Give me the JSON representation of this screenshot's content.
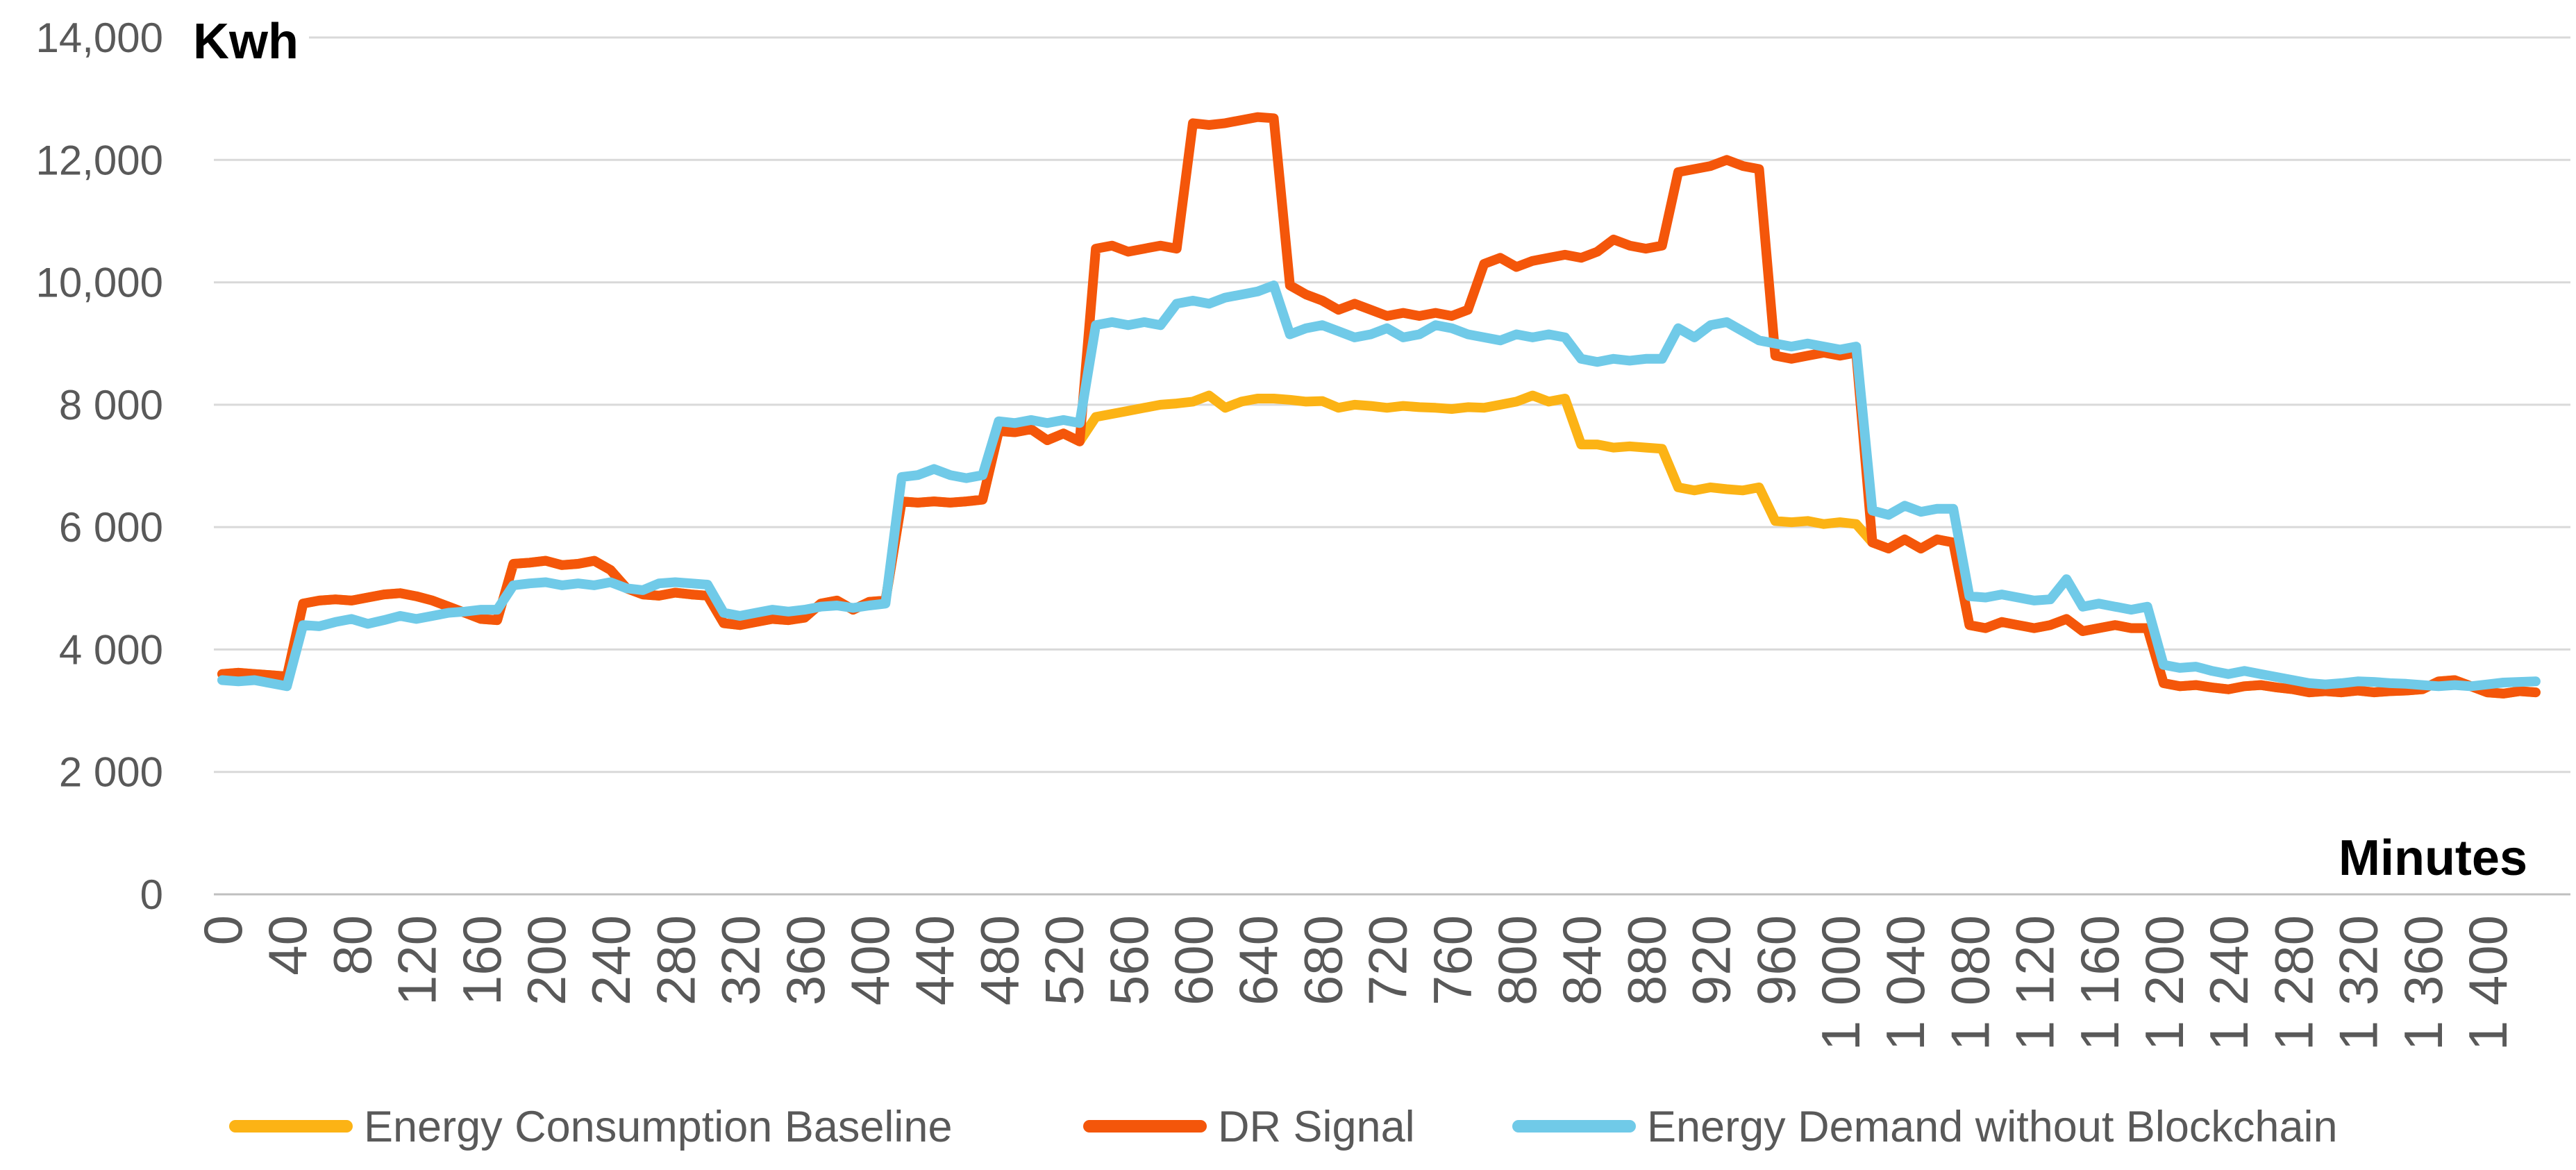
{
  "titles": {
    "y_axis_title": "Kwh",
    "x_axis_title": "Minutes"
  },
  "colors": {
    "baseline": "#FCB315",
    "dr_signal": "#F4560A",
    "no_blockchain": "#70CAE8",
    "gridline": "#D9D9D9",
    "axis_line": "#BFBFBF",
    "tick_text": "#595959",
    "title_text": "#000000",
    "background": "#FFFFFF"
  },
  "legend": {
    "items": [
      {
        "label": "Energy Consumption Baseline",
        "color_key": "baseline"
      },
      {
        "label": "DR Signal",
        "color_key": "dr_signal"
      },
      {
        "label": "Energy Demand without Blockchain",
        "color_key": "no_blockchain"
      }
    ]
  },
  "chart_data": {
    "type": "line",
    "title": "",
    "xlabel": "Minutes",
    "ylabel": "Kwh",
    "xlim": [
      0,
      1440
    ],
    "ylim": [
      0,
      14000
    ],
    "grid": "horizontal-only",
    "legend_position": "bottom",
    "ytick_labels_top_to_bottom": [
      "14,000",
      "12,000",
      "10,000",
      "8 000",
      "6 000",
      "4 000",
      "2 000",
      "0"
    ],
    "ytick_values_top_to_bottom": [
      14000,
      12000,
      10000,
      8000,
      6000,
      4000,
      2000,
      0
    ],
    "xtick_step_minutes": 40,
    "xtick_labels": [
      "0",
      "40",
      "80",
      "120",
      "160",
      "200",
      "240",
      "280",
      "320",
      "360",
      "400",
      "440",
      "480",
      "520",
      "560",
      "600",
      "640",
      "680",
      "720",
      "760",
      "800",
      "840",
      "880",
      "920",
      "960",
      "1 000",
      "1 040",
      "1 080",
      "1 120",
      "1 160",
      "1 200",
      "1 240",
      "1 280",
      "1 320",
      "1 360",
      "1 400"
    ],
    "x_start": 0,
    "x_step": 10,
    "series": [
      {
        "name": "Energy Consumption Baseline",
        "color_key": "baseline",
        "values": [
          3600,
          3620,
          3600,
          3580,
          3560,
          4750,
          4800,
          4820,
          4800,
          4850,
          4900,
          4920,
          4870,
          4800,
          4700,
          4600,
          4500,
          4480,
          5400,
          5420,
          5450,
          5380,
          5400,
          5450,
          5300,
          5000,
          4900,
          4880,
          4930,
          4900,
          4880,
          4430,
          4400,
          4450,
          4500,
          4480,
          4520,
          4750,
          4800,
          4650,
          4780,
          4800,
          6420,
          6400,
          6420,
          6400,
          6420,
          6450,
          7570,
          7550,
          7600,
          7420,
          7530,
          7400,
          7800,
          7850,
          7900,
          7950,
          8000,
          8020,
          8050,
          8150,
          7950,
          8050,
          8100,
          8100,
          8080,
          8050,
          8060,
          7950,
          8000,
          7980,
          7950,
          7980,
          7960,
          7950,
          7930,
          7960,
          7950,
          8000,
          8050,
          8150,
          8050,
          8100,
          7350,
          7350,
          7300,
          7320,
          7300,
          7280,
          6650,
          6600,
          6650,
          6620,
          6600,
          6650,
          6100,
          6080,
          6100,
          6050,
          6080,
          6050,
          5750,
          5650,
          5800,
          5650,
          5800,
          5750,
          4400,
          4350,
          4450,
          4400,
          4350,
          4400,
          4500,
          4300,
          4350,
          4400,
          4350,
          4350,
          3450,
          3400,
          3420,
          3380,
          3350,
          3400,
          3420,
          3380,
          3350,
          3300,
          3320,
          3300,
          3330,
          3300,
          3320,
          3330,
          3350,
          3480,
          3500,
          3400,
          3300,
          3280,
          3320,
          3300
        ]
      },
      {
        "name": "DR Signal",
        "color_key": "dr_signal",
        "values": [
          3600,
          3620,
          3600,
          3580,
          3560,
          4750,
          4800,
          4820,
          4800,
          4850,
          4900,
          4920,
          4870,
          4800,
          4700,
          4600,
          4500,
          4480,
          5400,
          5420,
          5450,
          5380,
          5400,
          5450,
          5300,
          5000,
          4900,
          4880,
          4930,
          4900,
          4880,
          4430,
          4400,
          4450,
          4500,
          4480,
          4520,
          4750,
          4800,
          4650,
          4780,
          4800,
          6420,
          6400,
          6420,
          6400,
          6420,
          6450,
          7570,
          7550,
          7600,
          7420,
          7530,
          7400,
          10550,
          10600,
          10500,
          10550,
          10600,
          10550,
          12600,
          12570,
          12600,
          12650,
          12700,
          12680,
          9950,
          9800,
          9700,
          9550,
          9650,
          9550,
          9450,
          9500,
          9450,
          9500,
          9450,
          9550,
          10300,
          10400,
          10250,
          10350,
          10400,
          10450,
          10400,
          10500,
          10700,
          10600,
          10550,
          10600,
          11800,
          11850,
          11900,
          12000,
          11900,
          11850,
          8800,
          8750,
          8800,
          8850,
          8800,
          8850,
          5750,
          5650,
          5800,
          5650,
          5800,
          5750,
          4400,
          4350,
          4450,
          4400,
          4350,
          4400,
          4500,
          4300,
          4350,
          4400,
          4350,
          4350,
          3450,
          3400,
          3420,
          3380,
          3350,
          3400,
          3420,
          3380,
          3350,
          3300,
          3320,
          3300,
          3330,
          3300,
          3320,
          3330,
          3350,
          3480,
          3500,
          3400,
          3300,
          3280,
          3320,
          3300
        ]
      },
      {
        "name": "Energy Demand without Blockchain",
        "color_key": "no_blockchain",
        "values": [
          3500,
          3480,
          3500,
          3450,
          3400,
          4400,
          4380,
          4450,
          4500,
          4420,
          4480,
          4550,
          4500,
          4550,
          4600,
          4620,
          4650,
          4650,
          5050,
          5080,
          5100,
          5050,
          5080,
          5050,
          5100,
          5000,
          4970,
          5080,
          5100,
          5080,
          5060,
          4600,
          4550,
          4600,
          4650,
          4620,
          4650,
          4700,
          4720,
          4680,
          4720,
          4750,
          6820,
          6850,
          6950,
          6850,
          6800,
          6850,
          7730,
          7700,
          7750,
          7700,
          7750,
          7700,
          9300,
          9350,
          9300,
          9350,
          9300,
          9650,
          9700,
          9650,
          9750,
          9800,
          9850,
          9950,
          9150,
          9250,
          9300,
          9200,
          9100,
          9150,
          9250,
          9100,
          9150,
          9300,
          9250,
          9150,
          9100,
          9050,
          9150,
          9100,
          9150,
          9100,
          8750,
          8700,
          8750,
          8720,
          8750,
          8750,
          9250,
          9100,
          9300,
          9350,
          9200,
          9050,
          9000,
          8950,
          9000,
          8950,
          8900,
          8950,
          6270,
          6200,
          6350,
          6250,
          6300,
          6300,
          4870,
          4850,
          4900,
          4850,
          4800,
          4820,
          5150,
          4700,
          4750,
          4700,
          4650,
          4700,
          3750,
          3700,
          3720,
          3650,
          3600,
          3650,
          3600,
          3550,
          3500,
          3450,
          3430,
          3450,
          3480,
          3470,
          3450,
          3440,
          3420,
          3400,
          3420,
          3400,
          3430,
          3460,
          3470,
          3480
        ]
      }
    ]
  }
}
